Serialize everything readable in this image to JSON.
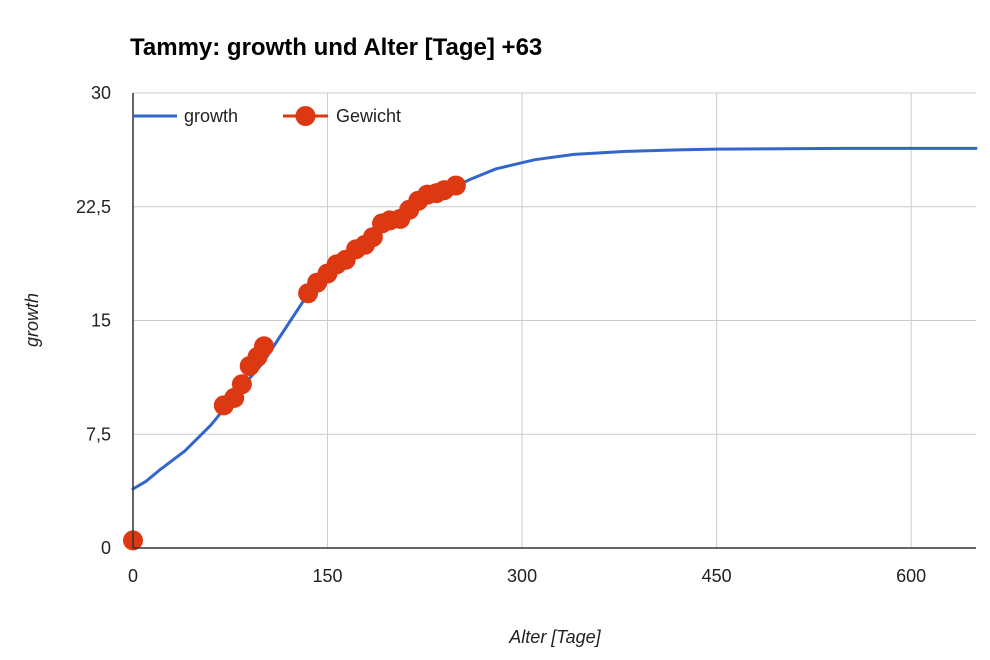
{
  "chart_data": {
    "type": "line",
    "title": "Tammy: growth und Alter [Tage] +63",
    "xlabel": "Alter [Tage]",
    "ylabel": "growth",
    "xlim": [
      0,
      650
    ],
    "ylim": [
      0,
      30
    ],
    "x_ticks": [
      {
        "value": 0,
        "label": "0"
      },
      {
        "value": 150,
        "label": "150"
      },
      {
        "value": 300,
        "label": "300"
      },
      {
        "value": 450,
        "label": "450"
      },
      {
        "value": 600,
        "label": "600"
      }
    ],
    "y_ticks": [
      {
        "value": 0,
        "label": "0"
      },
      {
        "value": 7.5,
        "label": "7,5"
      },
      {
        "value": 15,
        "label": "15"
      },
      {
        "value": 22.5,
        "label": "22,5"
      },
      {
        "value": 30,
        "label": "30"
      }
    ],
    "grid": true,
    "legend": {
      "placement": "top-left"
    },
    "series": [
      {
        "name": "growth",
        "kind": "line",
        "color": "#3366cc",
        "points": [
          [
            0,
            3.9
          ],
          [
            10,
            4.4
          ],
          [
            20,
            5.1
          ],
          [
            40,
            6.4
          ],
          [
            60,
            8.1
          ],
          [
            80,
            10.2
          ],
          [
            100,
            12.2
          ],
          [
            120,
            14.8
          ],
          [
            140,
            17.4
          ],
          [
            160,
            19.2
          ],
          [
            180,
            20.5
          ],
          [
            200,
            21.6
          ],
          [
            220,
            22.6
          ],
          [
            240,
            23.5
          ],
          [
            260,
            24.3
          ],
          [
            280,
            25.0
          ],
          [
            310,
            25.6
          ],
          [
            340,
            25.95
          ],
          [
            380,
            26.15
          ],
          [
            420,
            26.25
          ],
          [
            450,
            26.3
          ],
          [
            500,
            26.33
          ],
          [
            550,
            26.35
          ],
          [
            600,
            26.35
          ],
          [
            650,
            26.35
          ]
        ]
      },
      {
        "name": "Gewicht",
        "kind": "scatter",
        "color": "#dc3912",
        "points": [
          [
            0,
            0.5
          ],
          [
            70,
            9.4
          ],
          [
            78,
            9.9
          ],
          [
            84,
            10.8
          ],
          [
            90,
            12.0
          ],
          [
            96,
            12.6
          ],
          [
            101,
            13.3
          ],
          [
            135,
            16.8
          ],
          [
            142,
            17.5
          ],
          [
            150,
            18.1
          ],
          [
            157,
            18.7
          ],
          [
            164,
            19.0
          ],
          [
            172,
            19.7
          ],
          [
            179,
            20.0
          ],
          [
            185,
            20.5
          ],
          [
            192,
            21.4
          ],
          [
            198,
            21.6
          ],
          [
            206,
            21.7
          ],
          [
            213,
            22.3
          ],
          [
            220,
            22.9
          ],
          [
            227,
            23.3
          ],
          [
            234,
            23.4
          ],
          [
            240,
            23.6
          ],
          [
            249,
            23.9
          ]
        ]
      }
    ]
  }
}
